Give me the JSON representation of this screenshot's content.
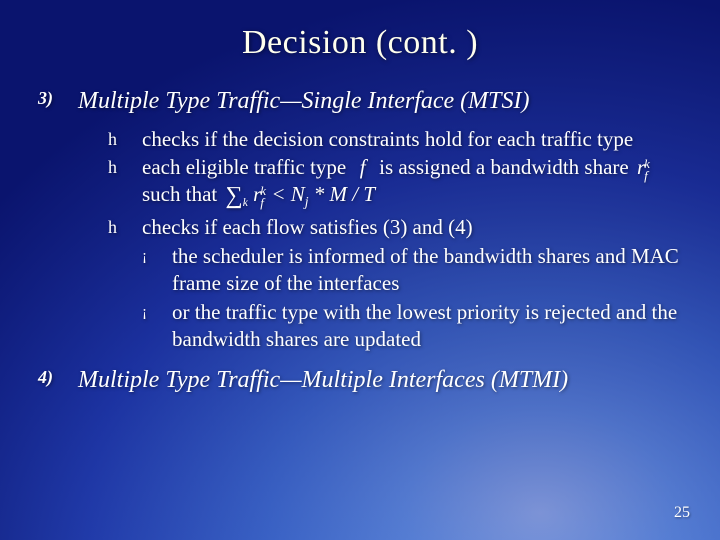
{
  "title": "Decision (cont. )",
  "items": [
    {
      "marker": "3)",
      "text": "Multiple Type Traffic—Single Interface (MTSI)",
      "bullets": [
        {
          "marker": "h",
          "text": "checks if the decision constraints hold for each traffic type"
        },
        {
          "marker": "h",
          "pre": "each eligible traffic type ",
          "mid": " is assigned a bandwidth share ",
          "post": "such that "
        },
        {
          "marker": "h",
          "text": "checks if each flow satisfies (3) and (4)",
          "sub": [
            {
              "marker": "¡",
              "text": "the scheduler is informed of the bandwidth shares and MAC frame size of the interfaces"
            },
            {
              "marker": "¡",
              "text": "or the traffic type with the lowest priority is rejected and the bandwidth shares are updated"
            }
          ]
        }
      ]
    },
    {
      "marker": "4)",
      "text": "Multiple Type Traffic—Multiple Interfaces (MTMI)"
    }
  ],
  "math": {
    "var_f": "f",
    "var_r": "r",
    "sup_k": "k",
    "sub_f": "f",
    "ineq": " < N<sub>j</sub> * M / T",
    "sum_sub": "k"
  },
  "page_number": "25",
  "colors": {
    "text": "#ffffff",
    "title": "#ffffee"
  }
}
